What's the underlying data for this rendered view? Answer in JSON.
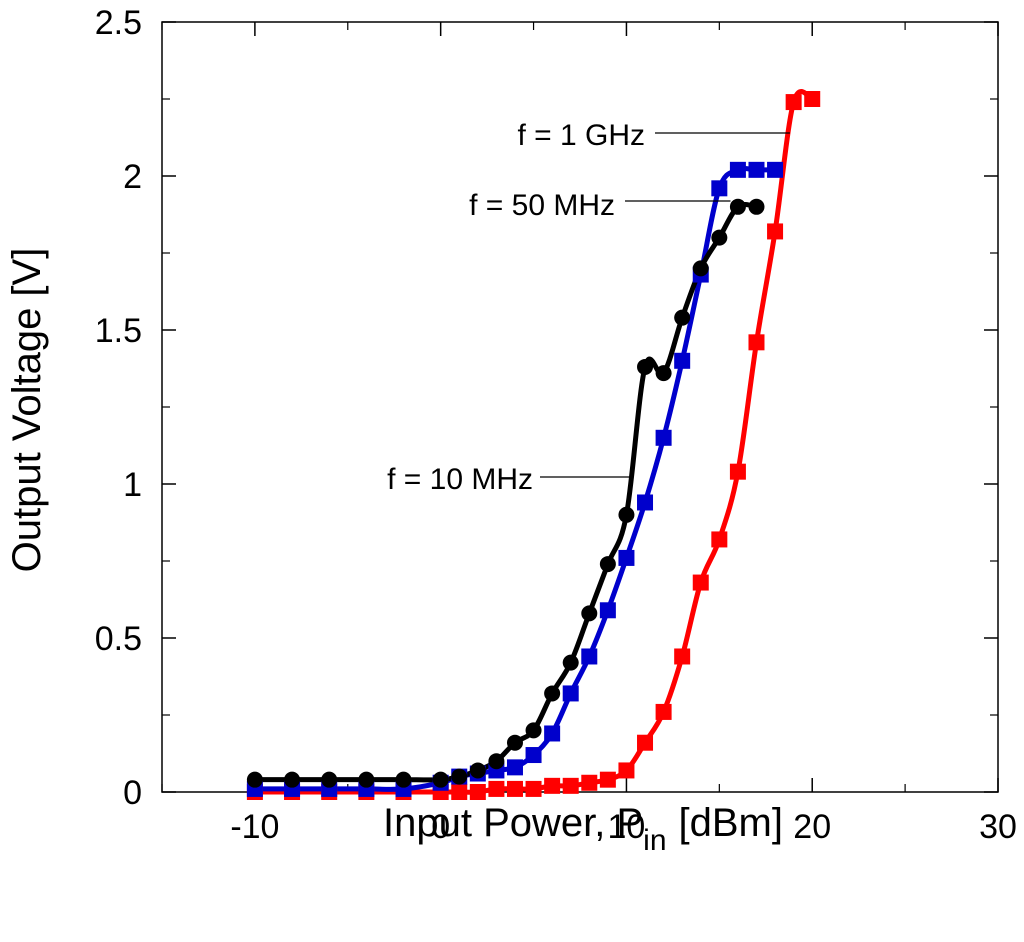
{
  "chart_data": {
    "type": "scatter",
    "title": "",
    "xlabel": "Input Power, P",
    "xlabel_sub": "in",
    "xlabel_unit": "[dBm]",
    "ylabel": "Output Voltage [V]",
    "xlim": [
      -15,
      30
    ],
    "ylim": [
      0,
      2.5
    ],
    "xticks": [
      -10,
      0,
      10,
      20,
      30
    ],
    "yticks": [
      0,
      0.5,
      1,
      1.5,
      2,
      2.5
    ],
    "xtick_labels": [
      "-10",
      "0",
      "10",
      "20",
      "30"
    ],
    "ytick_labels": [
      "0",
      "0.5",
      "1",
      "1.5",
      "2",
      "2.5"
    ],
    "grid": false,
    "series": [
      {
        "name": "f = 10 MHz",
        "color": "#000000",
        "marker": "circle",
        "x": [
          -10,
          -8,
          -6,
          -4,
          -2,
          0,
          1,
          2,
          3,
          4,
          5,
          6,
          7,
          8,
          9,
          10,
          11,
          12,
          13,
          14,
          15,
          16,
          17
        ],
        "y": [
          0.04,
          0.04,
          0.04,
          0.04,
          0.04,
          0.04,
          0.05,
          0.07,
          0.1,
          0.16,
          0.2,
          0.32,
          0.42,
          0.58,
          0.74,
          0.9,
          1.38,
          1.36,
          1.54,
          1.7,
          1.8,
          1.9,
          1.9
        ]
      },
      {
        "name": "f = 50 MHz",
        "color": "#0000cc",
        "marker": "square",
        "x": [
          -10,
          -8,
          -6,
          -4,
          -2,
          0,
          1,
          2,
          3,
          4,
          5,
          6,
          7,
          8,
          9,
          10,
          11,
          12,
          13,
          14,
          15,
          16,
          17,
          18
        ],
        "y": [
          0.01,
          0.01,
          0.01,
          0.01,
          0.01,
          0.03,
          0.05,
          0.06,
          0.07,
          0.08,
          0.12,
          0.19,
          0.32,
          0.44,
          0.59,
          0.76,
          0.94,
          1.15,
          1.4,
          1.68,
          1.96,
          2.02,
          2.02,
          2.02
        ]
      },
      {
        "name": "f = 1 GHz",
        "color": "#ff0000",
        "marker": "square",
        "x": [
          -10,
          -8,
          -6,
          -4,
          -2,
          0,
          1,
          2,
          3,
          4,
          5,
          6,
          7,
          8,
          9,
          10,
          11,
          12,
          13,
          14,
          15,
          16,
          17,
          18,
          19,
          20
        ],
        "y": [
          0,
          0,
          0,
          0,
          0,
          0,
          0,
          0,
          0.01,
          0.01,
          0.01,
          0.02,
          0.02,
          0.03,
          0.04,
          0.07,
          0.16,
          0.26,
          0.44,
          0.68,
          0.82,
          1.04,
          1.46,
          1.82,
          2.24,
          2.25
        ]
      }
    ],
    "annotations": [
      {
        "text": "f = 1 GHz",
        "series": "f = 1 GHz",
        "point": [
          18.8,
          2.15
        ]
      },
      {
        "text": "f = 50 MHz",
        "series": "f = 50 MHz",
        "point": [
          15.6,
          1.92
        ]
      },
      {
        "text": "f = 10 MHz",
        "series": "f = 10 MHz",
        "point": [
          10.2,
          1.0
        ]
      }
    ]
  }
}
